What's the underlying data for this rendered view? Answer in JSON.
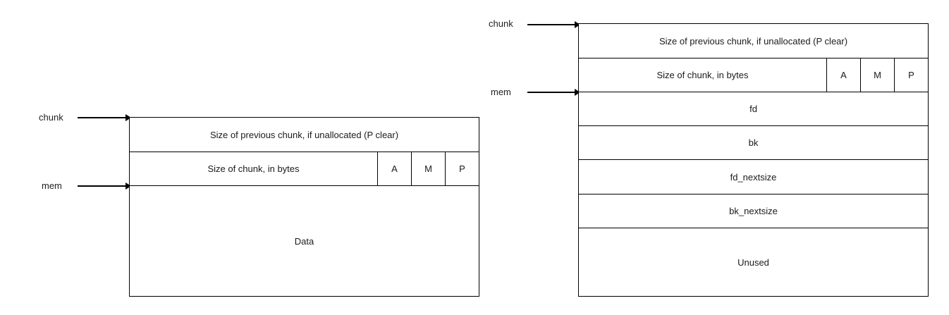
{
  "allocated": {
    "chunk_label": "chunk",
    "mem_label": "mem",
    "prev_size": "Size of previous chunk, if unallocated (P clear)",
    "size": "Size of chunk, in bytes",
    "flags": [
      "A",
      "M",
      "P"
    ],
    "data": "Data"
  },
  "free": {
    "chunk_label": "chunk",
    "mem_label": "mem",
    "prev_size": "Size of previous chunk, if unallocated (P clear)",
    "size": "Size of chunk, in bytes",
    "flags": [
      "A",
      "M",
      "P"
    ],
    "fd": "fd",
    "bk": "bk",
    "fd_nextsize": "fd_nextsize",
    "bk_nextsize": "bk_nextsize",
    "unused": "Unused"
  }
}
